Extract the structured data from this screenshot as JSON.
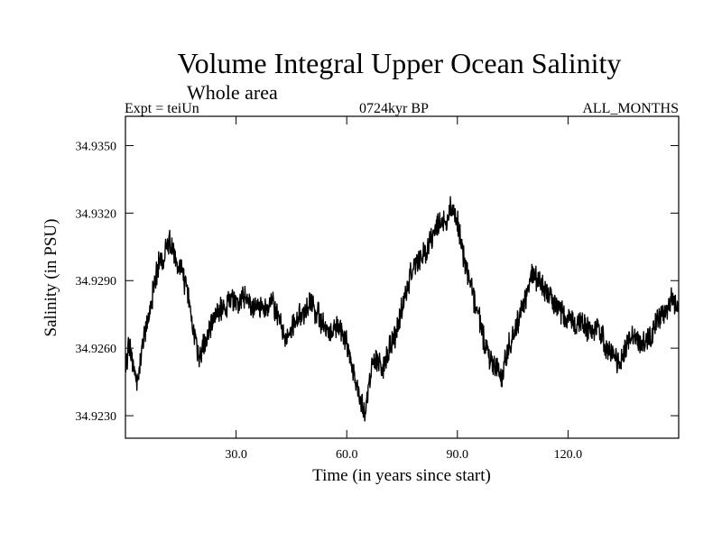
{
  "chart_data": {
    "type": "line",
    "title": "Volume Integral Upper Ocean Salinity",
    "subtitle": "Whole area",
    "header_left": "Expt = teiUn",
    "header_center": "0724kyr BP",
    "header_right": "ALL_MONTHS",
    "xlabel": "Time (in years since start)",
    "ylabel": "Salinity (in PSU)",
    "xlim": [
      0,
      150
    ],
    "ylim": [
      34.922,
      34.9363
    ],
    "x_ticks": [
      30,
      60,
      90,
      120
    ],
    "x_tick_labels": [
      "30.0",
      "60.0",
      "90.0",
      "120.0"
    ],
    "y_ticks": [
      34.923,
      34.926,
      34.929,
      34.932,
      34.935
    ],
    "y_tick_labels": [
      "34.9230",
      "34.9260",
      "34.9290",
      "34.9320",
      "34.9350"
    ],
    "series": [
      {
        "name": "Salinity",
        "color": "#000000",
        "x": [
          0,
          1,
          2,
          3,
          4,
          5,
          6,
          7,
          8,
          9,
          10,
          11,
          12,
          13,
          14,
          15,
          16,
          17,
          18,
          19,
          20,
          22,
          24,
          26,
          28,
          30,
          32,
          34,
          36,
          38,
          40,
          42,
          44,
          46,
          48,
          50,
          52,
          54,
          56,
          58,
          60,
          61,
          62,
          63,
          64,
          65,
          66,
          67,
          68,
          70,
          72,
          74,
          76,
          78,
          80,
          82,
          84,
          86,
          87,
          88,
          89,
          90,
          91,
          92,
          94,
          96,
          98,
          100,
          101,
          102,
          103,
          104,
          106,
          108,
          110,
          112,
          114,
          116,
          118,
          120,
          122,
          124,
          126,
          128,
          130,
          132,
          134,
          136,
          138,
          140,
          142,
          144,
          146,
          148,
          150
        ],
        "values": [
          34.925,
          34.9262,
          34.9255,
          34.9245,
          34.9252,
          34.9265,
          34.9272,
          34.928,
          34.929,
          34.9297,
          34.93,
          34.9303,
          34.9308,
          34.9302,
          34.9294,
          34.9298,
          34.929,
          34.9283,
          34.9272,
          34.9262,
          34.9255,
          34.9266,
          34.9274,
          34.9278,
          34.928,
          34.9281,
          34.9283,
          34.9278,
          34.928,
          34.9277,
          34.9279,
          34.9271,
          34.9262,
          34.9272,
          34.9276,
          34.928,
          34.9275,
          34.927,
          34.9268,
          34.927,
          34.9262,
          34.9255,
          34.9248,
          34.9242,
          34.9236,
          34.9232,
          34.9243,
          34.9252,
          34.9255,
          34.9252,
          34.9262,
          34.927,
          34.9285,
          34.9295,
          34.93,
          34.9304,
          34.9313,
          34.9318,
          34.9315,
          34.9323,
          34.932,
          34.9316,
          34.9308,
          34.9298,
          34.9285,
          34.9272,
          34.9258,
          34.9252,
          34.925,
          34.9246,
          34.9255,
          34.9262,
          34.927,
          34.928,
          34.9292,
          34.929,
          34.9285,
          34.928,
          34.9276,
          34.9273,
          34.927,
          34.9272,
          34.9266,
          34.927,
          34.9262,
          34.9258,
          34.9252,
          34.9262,
          34.9266,
          34.9262,
          34.9264,
          34.9272,
          34.9276,
          34.9282,
          34.9277
        ]
      }
    ]
  }
}
